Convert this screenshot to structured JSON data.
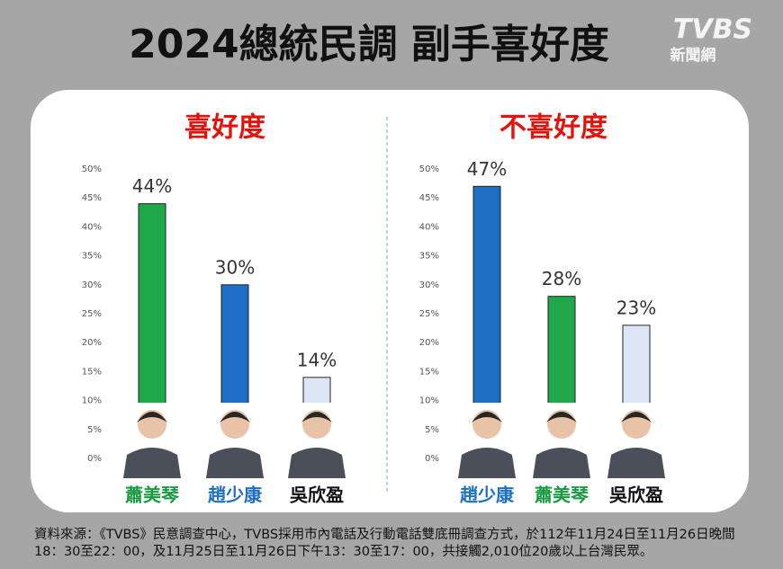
{
  "header": {
    "title": "2024總統民調 副手喜好度",
    "logo": "TVBS",
    "logo_sub": "新聞網"
  },
  "source": "資料來源：《TVBS》民意調查中心，TVBS採用市內電話及行動電話雙底冊調查方式，於112年11月24日至11月26日晚間18：30至22：00，及11月25日至11月26日下午13：30至17：00，共接觸2,010位20歲以上台灣民眾。",
  "chart_data": [
    {
      "type": "bar",
      "title": "喜好度",
      "title_color": "#e3120b",
      "categories": [
        "蕭美琴",
        "趙少康",
        "吳欣盈"
      ],
      "values": [
        44,
        30,
        14
      ],
      "value_labels": [
        "44%",
        "30%",
        "14%"
      ],
      "colors": [
        "#1fa84a",
        "#1c6fc4",
        "#dde6f5"
      ],
      "label_colors": [
        "#1a9a40",
        "#1c6fc4",
        "#111111"
      ],
      "ylim": [
        0,
        50
      ],
      "yticks": [
        {
          "value": 0,
          "label": "0%"
        },
        {
          "value": 5,
          "label": "5%"
        },
        {
          "value": 10,
          "label": "10%"
        },
        {
          "value": 15,
          "label": "15%"
        },
        {
          "value": 20,
          "label": "20%"
        },
        {
          "value": 25,
          "label": "25%"
        },
        {
          "value": 30,
          "label": "30%"
        },
        {
          "value": 35,
          "label": "35%"
        },
        {
          "value": 40,
          "label": "40%"
        },
        {
          "value": 45,
          "label": "45%"
        },
        {
          "value": 50,
          "label": "50%"
        }
      ],
      "grid": false
    },
    {
      "type": "bar",
      "title": "不喜好度",
      "title_color": "#e3120b",
      "categories": [
        "趙少康",
        "蕭美琴",
        "吳欣盈"
      ],
      "values": [
        47,
        28,
        23
      ],
      "value_labels": [
        "47%",
        "28%",
        "23%"
      ],
      "colors": [
        "#1c6fc4",
        "#1fa84a",
        "#dde6f5"
      ],
      "label_colors": [
        "#1c6fc4",
        "#1a9a40",
        "#111111"
      ],
      "ylim": [
        0,
        50
      ],
      "yticks": [
        {
          "value": 0,
          "label": "0%"
        },
        {
          "value": 5,
          "label": "5%"
        },
        {
          "value": 10,
          "label": "10%"
        },
        {
          "value": 15,
          "label": "15%"
        },
        {
          "value": 20,
          "label": "20%"
        },
        {
          "value": 25,
          "label": "25%"
        },
        {
          "value": 30,
          "label": "30%"
        },
        {
          "value": 35,
          "label": "35%"
        },
        {
          "value": 40,
          "label": "40%"
        },
        {
          "value": 45,
          "label": "45%"
        },
        {
          "value": 50,
          "label": "50%"
        }
      ],
      "grid": false
    }
  ]
}
